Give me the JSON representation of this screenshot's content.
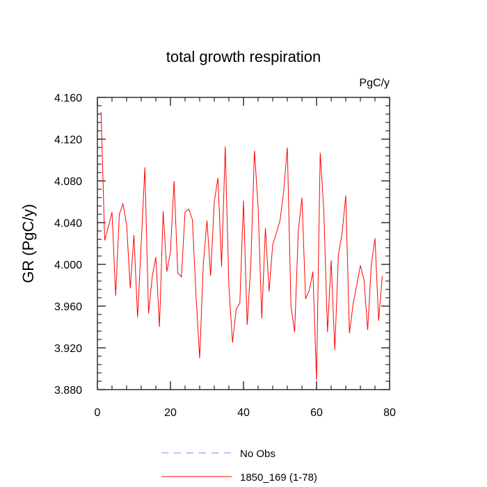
{
  "chart_data": {
    "type": "line",
    "title": "total growth respiration",
    "units": "PgC/y",
    "xlabel": "",
    "ylabel": "GR  (PgC/y)",
    "xlim": [
      0,
      80
    ],
    "ylim": [
      3.88,
      4.16
    ],
    "x_ticks": [
      0,
      20,
      40,
      60,
      80
    ],
    "x_tick_labels": [
      "0",
      "20",
      "40",
      "60",
      "80"
    ],
    "y_ticks": [
      3.88,
      3.92,
      3.96,
      4.0,
      4.04,
      4.08,
      4.12,
      4.16
    ],
    "y_tick_labels": [
      "3.880",
      "3.920",
      "3.960",
      "4.000",
      "4.040",
      "4.080",
      "4.120",
      "4.160"
    ],
    "series": [
      {
        "name": "1850_169 (1-78)",
        "color": "#ff0000",
        "x": [
          1,
          2,
          3,
          4,
          5,
          6,
          7,
          8,
          9,
          10,
          11,
          12,
          13,
          14,
          15,
          16,
          17,
          18,
          19,
          20,
          21,
          22,
          23,
          24,
          25,
          26,
          27,
          28,
          29,
          30,
          31,
          32,
          33,
          34,
          35,
          36,
          37,
          38,
          39,
          40,
          41,
          42,
          43,
          44,
          45,
          46,
          47,
          48,
          49,
          50,
          51,
          52,
          53,
          54,
          55,
          56,
          57,
          58,
          59,
          60,
          61,
          62,
          63,
          64,
          65,
          66,
          67,
          68,
          69,
          70,
          71,
          72,
          73,
          74,
          75,
          76,
          77,
          78
        ],
        "values": [
          4.146,
          4.023,
          4.036,
          4.05,
          3.97,
          4.048,
          4.058,
          4.038,
          3.977,
          4.028,
          3.949,
          4.02,
          4.093,
          3.953,
          3.988,
          4.007,
          3.94,
          4.051,
          3.993,
          4.012,
          4.08,
          3.992,
          3.988,
          4.05,
          4.053,
          4.043,
          3.97,
          3.91,
          4.001,
          4.042,
          3.989,
          4.06,
          4.083,
          3.998,
          4.113,
          3.979,
          3.925,
          3.957,
          3.963,
          4.061,
          3.942,
          4.0,
          4.109,
          4.055,
          3.948,
          4.035,
          3.974,
          4.019,
          4.03,
          4.042,
          4.07,
          4.112,
          3.96,
          3.935,
          4.032,
          4.064,
          3.967,
          3.975,
          3.993,
          3.889,
          4.107,
          4.051,
          3.935,
          4.004,
          3.918,
          4.01,
          4.03,
          4.066,
          3.934,
          3.962,
          3.98,
          3.999,
          3.985,
          3.937,
          4.0,
          4.025,
          3.946,
          3.989
        ]
      },
      {
        "name": "No Obs",
        "color": "#8080ff",
        "dashed": true,
        "x": [],
        "values": []
      }
    ],
    "legend": [
      {
        "label": "No Obs",
        "style": "dashed",
        "color": "#8080ff"
      },
      {
        "label": "1850_169 (1-78)",
        "style": "solid",
        "color": "#ff0000"
      }
    ],
    "legend_position": "bottom-center"
  }
}
